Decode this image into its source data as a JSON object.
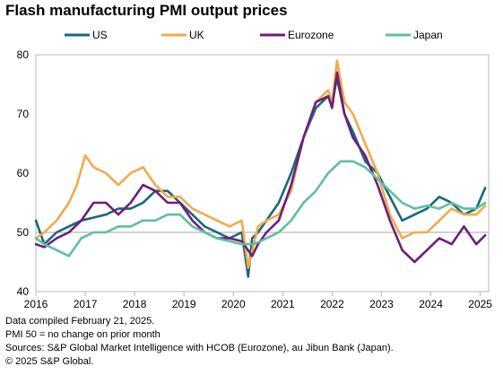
{
  "title": "Flash manufacturing PMI output prices",
  "notes": [
    "Data compiled February 21, 2025.",
    "PMI 50 = no change on prior month",
    "Sources: S&P Global Market Intelligence with HCOB (Eurozone), au Jibun Bank (Japan).",
    "© 2025 S&P Global."
  ],
  "chart_data": {
    "type": "line",
    "title": "Flash manufacturing PMI output prices",
    "xlabel": "",
    "ylabel": "",
    "xlim": [
      2016.0,
      2025.17
    ],
    "ylim": [
      40,
      80
    ],
    "y_ticks": [
      40,
      50,
      60,
      70,
      80
    ],
    "x_ticks": [
      2016,
      2017,
      2018,
      2019,
      2020,
      2021,
      2022,
      2023,
      2024,
      2025
    ],
    "reference_line": 50,
    "legend": "top",
    "grid": false,
    "series": [
      {
        "name": "US",
        "color": "#19677d",
        "x": [
          2016.0,
          2016.17,
          2016.42,
          2016.67,
          2016.92,
          2017.17,
          2017.42,
          2017.67,
          2017.92,
          2018.17,
          2018.42,
          2018.67,
          2018.92,
          2019.17,
          2019.42,
          2019.67,
          2019.92,
          2020.17,
          2020.3,
          2020.38,
          2020.5,
          2020.67,
          2020.92,
          2021.17,
          2021.42,
          2021.67,
          2021.92,
          2022.0,
          2022.1,
          2022.25,
          2022.42,
          2022.67,
          2022.92,
          2023.17,
          2023.42,
          2023.67,
          2023.92,
          2024.17,
          2024.42,
          2024.67,
          2024.92,
          2025.1
        ],
        "values": [
          52,
          48,
          50,
          51,
          52,
          52.5,
          53,
          54,
          54,
          55,
          57,
          57,
          55,
          53,
          51,
          50,
          49,
          50,
          42.5,
          49,
          50,
          52,
          55,
          60,
          66,
          71,
          73,
          72,
          76,
          70,
          67,
          62,
          60,
          56,
          52,
          53,
          54,
          56,
          55,
          53,
          54,
          57.5
        ]
      },
      {
        "name": "UK",
        "color": "#f2aa4b",
        "x": [
          2016.0,
          2016.17,
          2016.42,
          2016.67,
          2016.83,
          2017.0,
          2017.17,
          2017.42,
          2017.67,
          2017.92,
          2018.17,
          2018.42,
          2018.67,
          2018.92,
          2019.17,
          2019.42,
          2019.67,
          2019.92,
          2020.17,
          2020.3,
          2020.5,
          2020.67,
          2020.92,
          2021.17,
          2021.42,
          2021.67,
          2021.92,
          2022.0,
          2022.1,
          2022.25,
          2022.42,
          2022.67,
          2022.92,
          2023.17,
          2023.42,
          2023.67,
          2023.92,
          2024.17,
          2024.42,
          2024.67,
          2024.92,
          2025.1
        ],
        "values": [
          49,
          50,
          52,
          55,
          58,
          63,
          61,
          60,
          58,
          60,
          61,
          58,
          56,
          56,
          54,
          53,
          52,
          51,
          52,
          44,
          51,
          52,
          53,
          57,
          66,
          72,
          74,
          72,
          79,
          72,
          70,
          65,
          60,
          53,
          49,
          50,
          50,
          52,
          54,
          53,
          53,
          54.5
        ]
      },
      {
        "name": "Eurozone",
        "color": "#6d1f7a",
        "x": [
          2016.0,
          2016.17,
          2016.42,
          2016.67,
          2016.92,
          2017.17,
          2017.42,
          2017.67,
          2017.92,
          2018.17,
          2018.42,
          2018.67,
          2018.92,
          2019.17,
          2019.42,
          2019.67,
          2019.92,
          2020.17,
          2020.38,
          2020.5,
          2020.67,
          2020.92,
          2021.17,
          2021.42,
          2021.67,
          2021.92,
          2022.0,
          2022.1,
          2022.25,
          2022.42,
          2022.67,
          2022.92,
          2023.17,
          2023.42,
          2023.67,
          2023.92,
          2024.17,
          2024.42,
          2024.67,
          2024.92,
          2025.1
        ],
        "values": [
          48,
          47.5,
          49,
          50,
          52,
          55,
          55,
          53,
          55,
          58,
          57,
          55,
          55,
          52,
          50,
          49,
          49,
          48.5,
          46,
          48,
          50,
          52,
          58,
          66,
          72,
          73,
          71,
          77,
          70,
          66,
          63,
          58,
          52,
          47,
          45,
          47,
          49,
          48,
          51,
          48,
          49.5
        ]
      },
      {
        "name": "Japan",
        "color": "#5fbfa0",
        "x": [
          2016.0,
          2016.17,
          2016.42,
          2016.67,
          2016.92,
          2017.17,
          2017.42,
          2017.67,
          2017.92,
          2018.17,
          2018.42,
          2018.67,
          2018.92,
          2019.17,
          2019.42,
          2019.67,
          2019.92,
          2020.17,
          2020.42,
          2020.67,
          2020.92,
          2021.17,
          2021.42,
          2021.67,
          2021.92,
          2022.17,
          2022.42,
          2022.67,
          2022.92,
          2023.17,
          2023.42,
          2023.67,
          2023.92,
          2024.17,
          2024.42,
          2024.67,
          2024.92,
          2025.1
        ],
        "values": [
          49,
          48,
          47,
          46,
          49,
          50,
          50,
          51,
          51,
          52,
          52,
          53,
          53,
          51,
          50,
          49,
          48.5,
          48,
          48,
          49,
          50,
          52,
          55,
          57,
          60,
          62,
          62,
          61,
          59,
          57,
          55,
          54,
          54.5,
          54,
          55,
          54,
          54,
          55
        ]
      }
    ]
  }
}
